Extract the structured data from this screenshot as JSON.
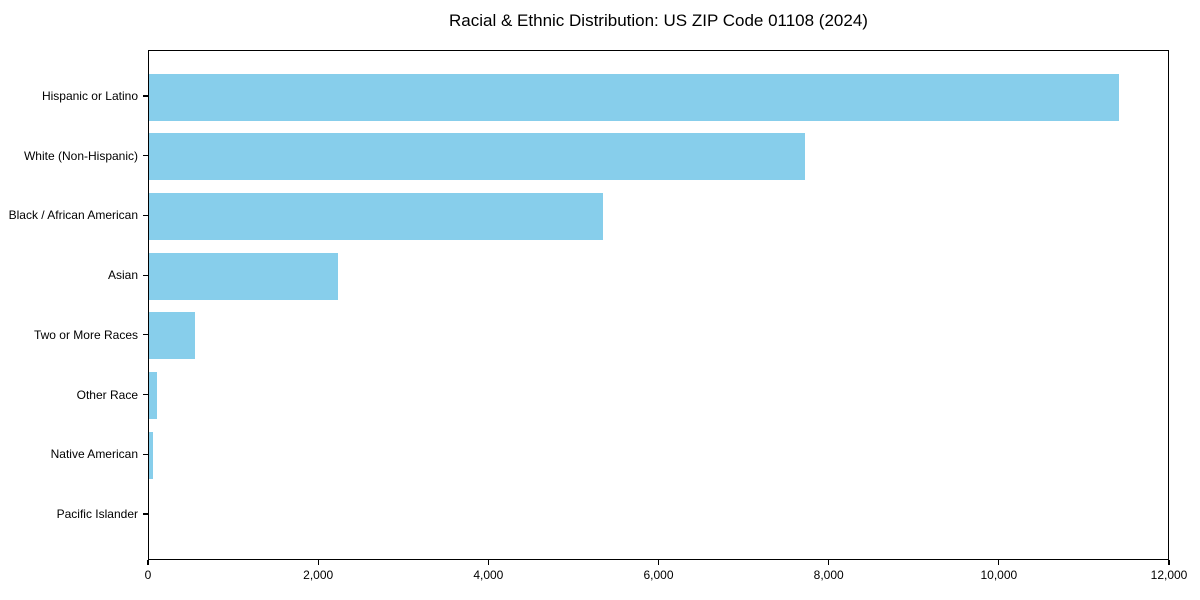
{
  "chart_data": {
    "type": "bar",
    "orientation": "horizontal",
    "title": "Racial & Ethnic Distribution: US ZIP Code 01108 (2024)",
    "categories": [
      "Hispanic or Latino",
      "White (Non-Hispanic)",
      "Black / African American",
      "Asian",
      "Two or More Races",
      "Other Race",
      "Native American",
      "Pacific Islander"
    ],
    "values": [
      11420,
      7730,
      5350,
      2220,
      540,
      100,
      50,
      0
    ],
    "xlabel": "",
    "ylabel": "",
    "xlim": [
      0,
      12000
    ],
    "x_tick_values": [
      0,
      2000,
      4000,
      6000,
      8000,
      10000,
      12000
    ],
    "x_tick_labels": [
      "0",
      "2,000",
      "4,000",
      "6,000",
      "8,000",
      "10,000",
      "12,000"
    ],
    "bar_color": "#87CEEB",
    "grid": false,
    "legend_position": "none",
    "background_color": "#ffffff",
    "text_color": "#000000"
  }
}
